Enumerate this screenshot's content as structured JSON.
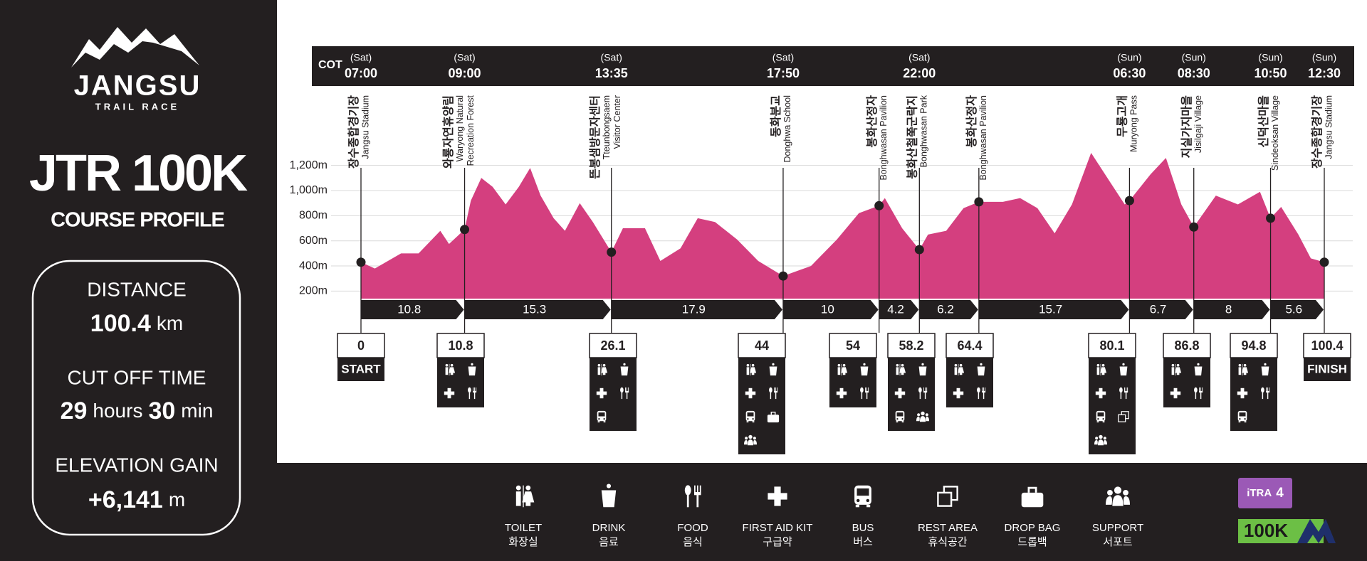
{
  "logo": {
    "name": "JANGSU",
    "tagline": "TRAIL RACE"
  },
  "title": "JTR 100K",
  "subtitle": "COURSE PROFILE",
  "distance": {
    "label": "DISTANCE",
    "value": 100.4,
    "unit": "km"
  },
  "cutoff": {
    "label": "CUT OFF TIME",
    "hours": 29,
    "hours_unit": "hours",
    "minutes": 30,
    "minutes_unit": "min"
  },
  "gain": {
    "label": "ELEVATION GAIN",
    "value": "+6,141",
    "unit": "m"
  },
  "chart_data": {
    "type": "area",
    "cot_label": "COT",
    "color": "#d43f7f",
    "xlim": [
      0,
      100.4
    ],
    "ylim": [
      140,
      1300
    ],
    "yticks": [
      {
        "value": 200,
        "label": "200m"
      },
      {
        "value": 400,
        "label": "400m"
      },
      {
        "value": 600,
        "label": "600m"
      },
      {
        "value": 800,
        "label": "800m"
      },
      {
        "value": 1000,
        "label": "1,000m"
      },
      {
        "value": 1200,
        "label": "1,200m"
      }
    ],
    "grid": true,
    "x": [
      0,
      1.45,
      4.18,
      6.0,
      8.27,
      9.18,
      10.8,
      11.45,
      12.54,
      13.72,
      15.08,
      16.45,
      17.63,
      18.72,
      20.08,
      21.26,
      22.8,
      24.17,
      26.1,
      27.3,
      29.6,
      31.2,
      33.3,
      35.1,
      36.9,
      39.2,
      41.4,
      44,
      46.9,
      49.6,
      51.9,
      54,
      54.6,
      56.4,
      58.2,
      59.1,
      61.0,
      62.8,
      64.4,
      66.9,
      68.7,
      70.5,
      72.3,
      74.1,
      76.1,
      77.8,
      79.6,
      80.1,
      82.3,
      83.9,
      85.5,
      86.8,
      89.1,
      91.4,
      93.7,
      94.8,
      95.9,
      97.7,
      99.0,
      100.4
    ],
    "values": [
      430,
      380,
      500,
      500,
      680,
      575,
      690,
      920,
      1100,
      1030,
      890,
      1030,
      1180,
      960,
      780,
      680,
      900,
      750,
      510,
      700,
      700,
      440,
      540,
      780,
      750,
      610,
      440,
      320,
      400,
      610,
      820,
      880,
      940,
      700,
      530,
      650,
      680,
      860,
      910,
      910,
      940,
      860,
      660,
      890,
      1300,
      1100,
      890,
      920,
      1130,
      1260,
      890,
      710,
      960,
      890,
      990,
      780,
      870,
      650,
      460,
      430
    ],
    "checkpoints": [
      {
        "day": "(Sat)",
        "time": "07:00",
        "name_ko": "장수종합경기장",
        "name_en": [
          "Jangsu Stadium"
        ],
        "distance": 0,
        "label": "START"
      },
      {
        "day": "(Sat)",
        "time": "09:00",
        "name_ko": "와룡자연휴양림",
        "name_en": [
          "Waryong Natural",
          "Recreation Forest"
        ],
        "distance": 10.8
      },
      {
        "day": "(Sat)",
        "time": "13:35",
        "name_ko": "뜬봉샘방문자센터",
        "name_en": [
          "Tteunbongsaem",
          "Visitor Center"
        ],
        "distance": 26.1
      },
      {
        "day": "(Sat)",
        "time": "17:50",
        "name_ko": "동화분교",
        "name_en": [
          "Donghwa School"
        ],
        "distance": 44
      },
      {
        "name_ko": "봉화산정자",
        "name_en": [
          "Bonghwasan Pavilion"
        ],
        "distance": 54
      },
      {
        "day": "(Sat)",
        "time": "22:00",
        "name_ko": "봉화산철쭉군락지",
        "name_en": [
          "Bonghwasan Park"
        ],
        "distance": 58.2
      },
      {
        "name_ko": "봉화산정자",
        "name_en": [
          "Bonghwasan Pavilion"
        ],
        "distance": 64.4
      },
      {
        "day": "(Sun)",
        "time": "06:30",
        "name_ko": "무룡고개",
        "name_en": [
          "Muryong Pass"
        ],
        "distance": 80.1
      },
      {
        "day": "(Sun)",
        "time": "08:30",
        "name_ko": "지실가지마을",
        "name_en": [
          "Jisilgaji Village"
        ],
        "distance": 86.8
      },
      {
        "day": "(Sun)",
        "time": "10:50",
        "name_ko": "신덕산마을",
        "name_en": [
          "Sindeoksan Village"
        ],
        "distance": 94.8
      },
      {
        "day": "(Sun)",
        "time": "12:30",
        "name_ko": "장수종합경기장",
        "name_en": [
          "Jangsu Stadium"
        ],
        "distance": 100.4,
        "label": "FINISH"
      }
    ],
    "segments": [
      10.8,
      15.3,
      17.9,
      10,
      4.2,
      6.2,
      15.7,
      6.7,
      8,
      5.6
    ]
  },
  "legend": [
    {
      "en": "TOILET",
      "ko": "화장실"
    },
    {
      "en": "DRINK",
      "ko": "음료"
    },
    {
      "en": "FOOD",
      "ko": "음식"
    },
    {
      "en": "FIRST AID KIT",
      "ko": "구급약"
    },
    {
      "en": "BUS",
      "ko": "버스"
    },
    {
      "en": "REST AREA",
      "ko": "휴식공간"
    },
    {
      "en": "DROP BAG",
      "ko": "드롭백"
    },
    {
      "en": "SUPPORT",
      "ko": "서포트"
    }
  ],
  "badges": {
    "itra": "iTRA",
    "itra_points": 4,
    "category": "100K"
  }
}
